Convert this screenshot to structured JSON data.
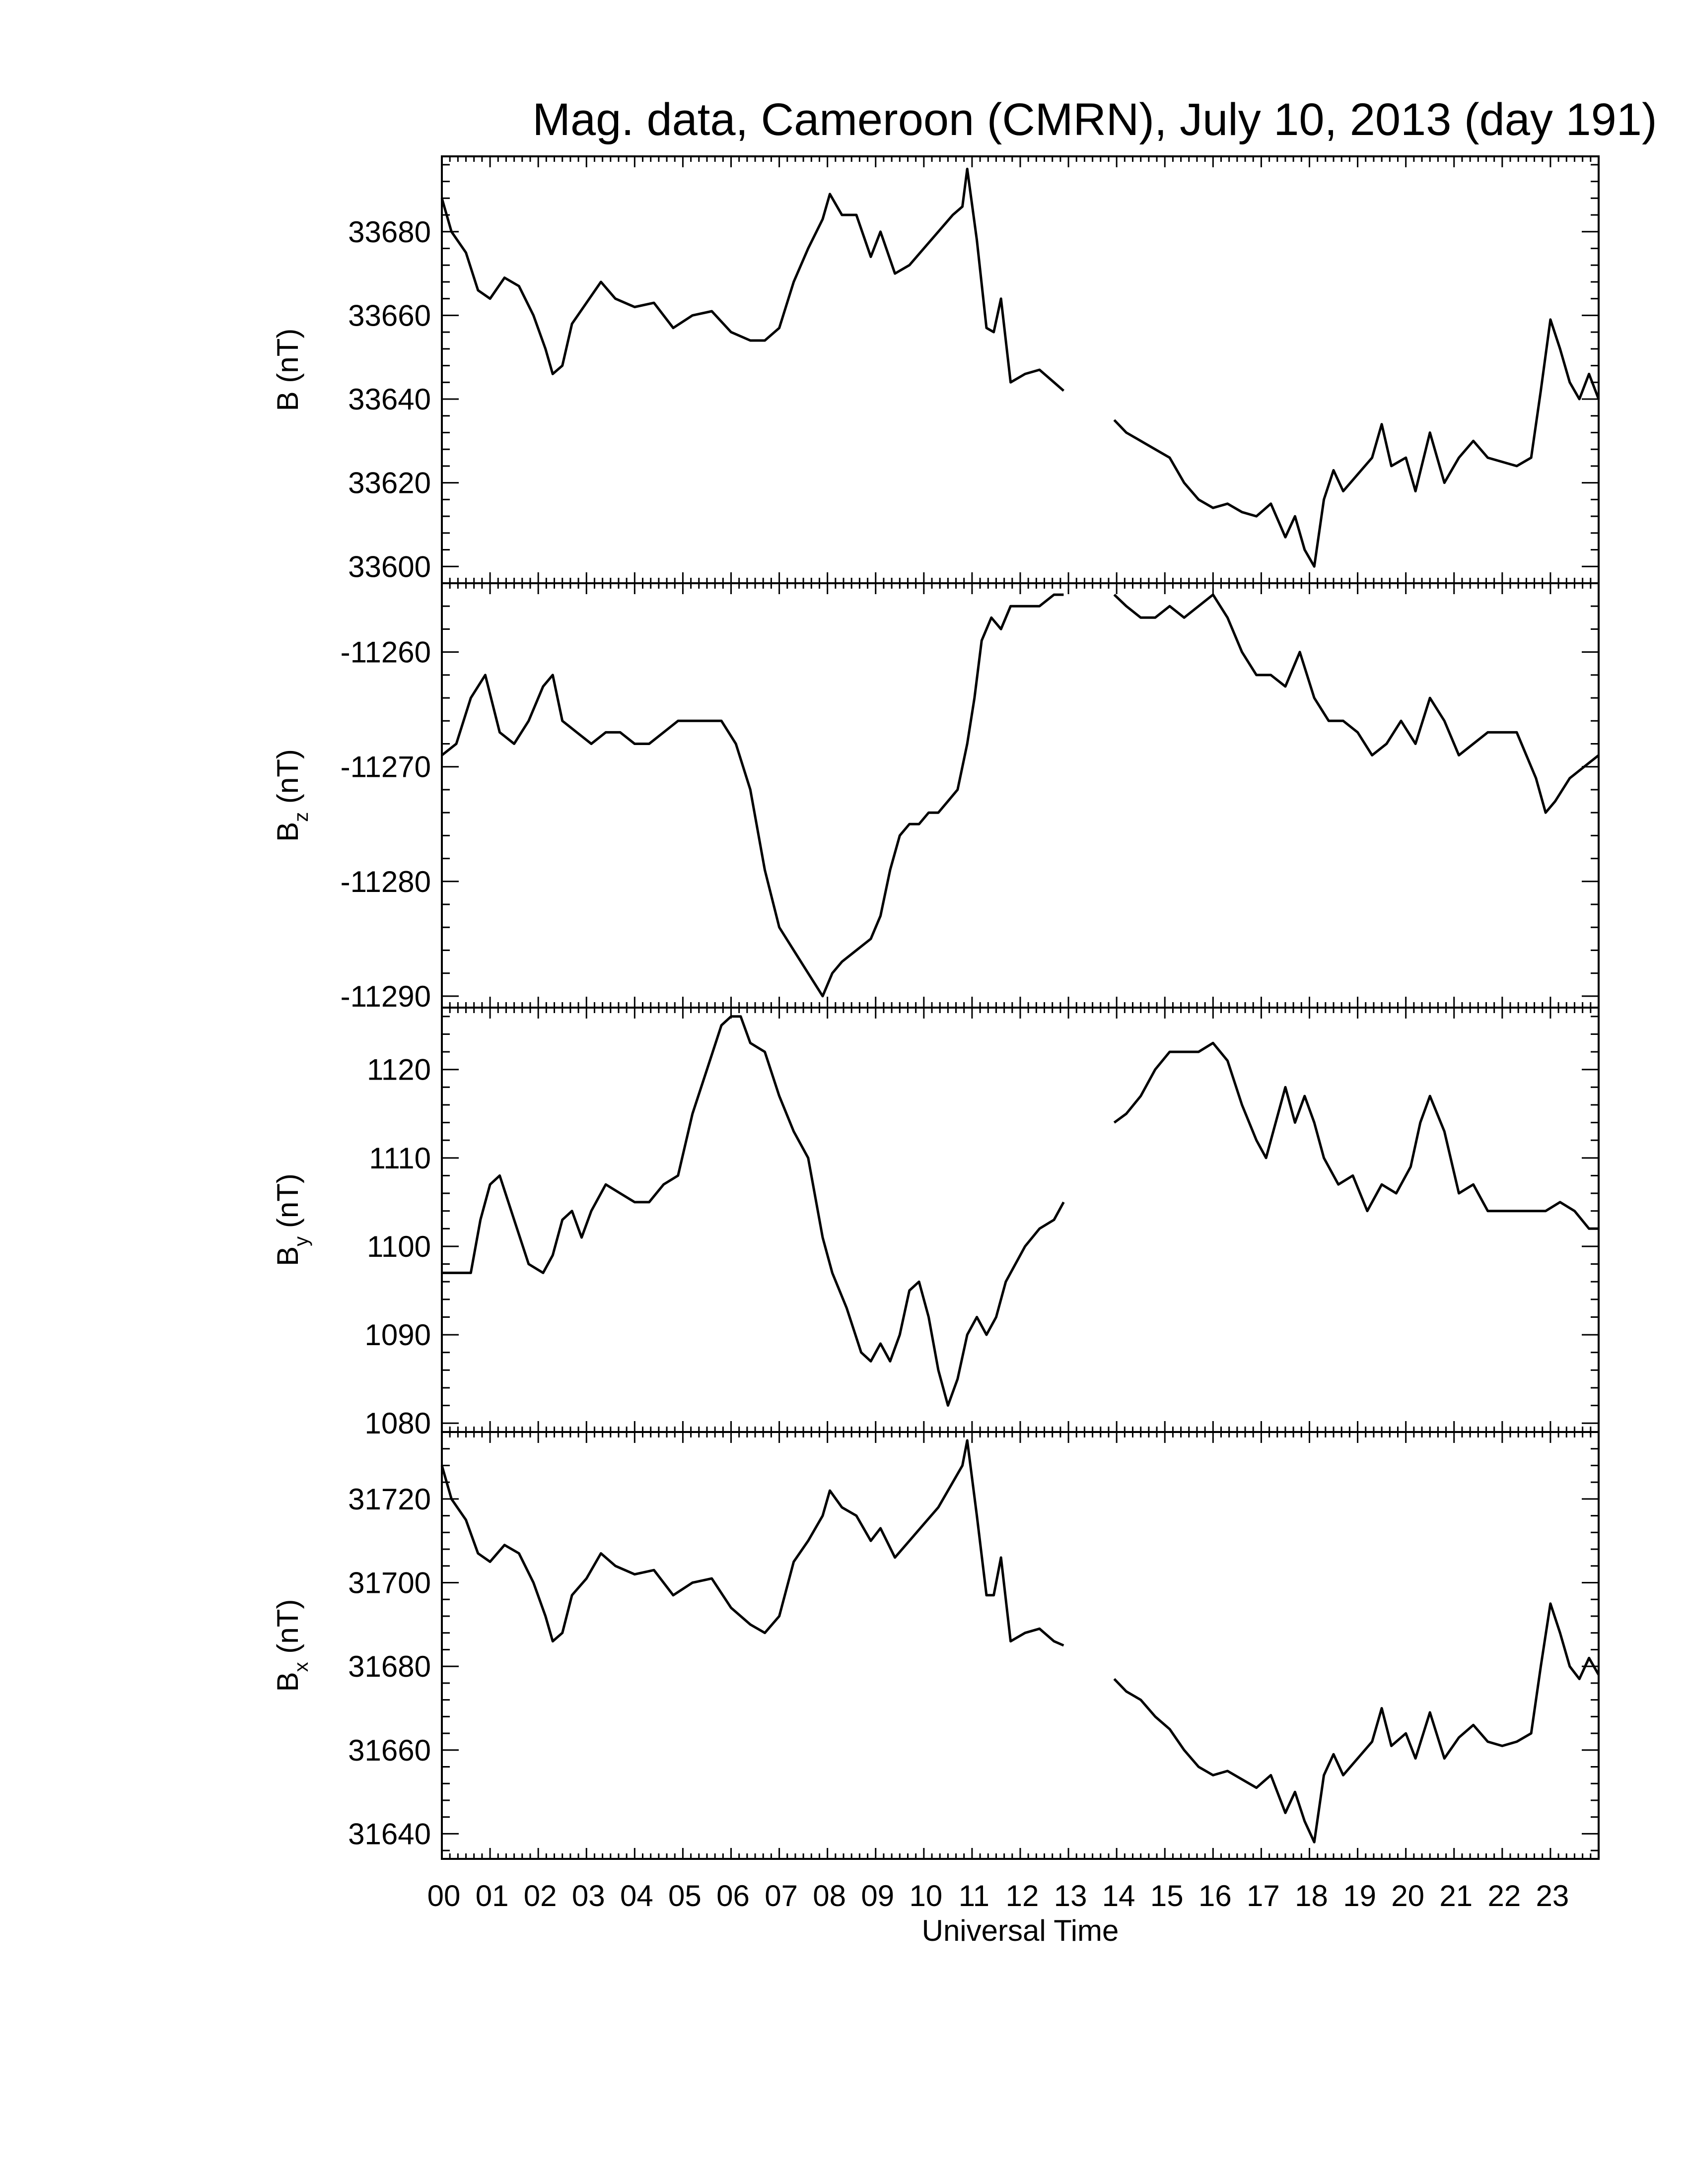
{
  "chart_data": {
    "type": "line",
    "title": "Mag. data, Cameroon (CMRN), July 10, 2013 (day 191)",
    "xlabel": "Universal Time",
    "x_unit": "hour UT",
    "xlim": [
      0,
      24
    ],
    "x_tick_labels": [
      "00",
      "01",
      "02",
      "03",
      "04",
      "05",
      "06",
      "07",
      "08",
      "09",
      "10",
      "11",
      "12",
      "13",
      "14",
      "15",
      "16",
      "17",
      "18",
      "19",
      "20",
      "21",
      "22",
      "23"
    ],
    "data_gap": [
      12.9,
      13.95
    ],
    "panels": [
      {
        "id": "B",
        "ylabel_main": "B",
        "ylabel_sub": "",
        "ylabel_unit": " (nT)",
        "ylim": [
          33596,
          33698
        ],
        "yticks": [
          33600,
          33620,
          33640,
          33660,
          33680
        ],
        "series": [
          {
            "x": [
              0,
              0.2,
              0.5,
              0.75,
              1.0,
              1.3,
              1.6,
              1.9,
              2.15,
              2.3,
              2.5,
              2.7,
              3.0,
              3.3,
              3.6,
              4.0,
              4.4,
              4.8,
              5.2,
              5.6,
              6.0,
              6.4,
              6.7,
              7.0,
              7.3,
              7.6,
              7.9,
              8.05,
              8.3,
              8.6,
              8.9,
              9.1,
              9.4,
              9.7,
              10.0,
              10.3,
              10.6,
              10.8,
              10.9,
              11.1,
              11.3,
              11.45,
              11.6,
              11.8,
              12.1,
              12.4,
              12.7,
              12.9
            ],
            "y": [
              33688,
              33680,
              33675,
              33666,
              33664,
              33669,
              33667,
              33660,
              33652,
              33646,
              33648,
              33658,
              33663,
              33668,
              33664,
              33662,
              33663,
              33657,
              33660,
              33661,
              33656,
              33654,
              33654,
              33657,
              33668,
              33676,
              33683,
              33689,
              33684,
              33684,
              33674,
              33680,
              33670,
              33672,
              33676,
              33680,
              33684,
              33686,
              33695,
              33678,
              33657,
              33656,
              33664,
              33644,
              33646,
              33647,
              33644,
              33642
            ]
          },
          {
            "x": [
              13.95,
              14.2,
              14.5,
              14.8,
              15.1,
              15.4,
              15.7,
              16.0,
              16.3,
              16.6,
              16.9,
              17.2,
              17.5,
              17.7,
              17.9,
              18.1,
              18.3,
              18.5,
              18.7,
              19.0,
              19.3,
              19.5,
              19.7,
              20.0,
              20.2,
              20.5,
              20.8,
              21.1,
              21.4,
              21.7,
              22.0,
              22.3,
              22.6,
              22.8,
              23.0,
              23.2,
              23.4,
              23.6,
              23.8,
              24.0
            ],
            "y": [
              33635,
              33632,
              33630,
              33628,
              33626,
              33620,
              33616,
              33614,
              33615,
              33613,
              33612,
              33615,
              33607,
              33612,
              33604,
              33600,
              33616,
              33623,
              33618,
              33622,
              33626,
              33634,
              33624,
              33626,
              33618,
              33632,
              33620,
              33626,
              33630,
              33626,
              33625,
              33624,
              33626,
              33642,
              33659,
              33652,
              33644,
              33640,
              33646,
              33640
            ]
          }
        ]
      },
      {
        "id": "Bz",
        "ylabel_main": "B",
        "ylabel_sub": "z",
        "ylabel_unit": " (nT)",
        "ylim": [
          -11291,
          -11254
        ],
        "yticks": [
          -11290,
          -11280,
          -11270,
          -11260
        ],
        "series": [
          {
            "x": [
              0,
              0.3,
              0.6,
              0.9,
              1.2,
              1.5,
              1.8,
              2.1,
              2.3,
              2.5,
              2.8,
              3.1,
              3.4,
              3.7,
              4.0,
              4.3,
              4.6,
              4.9,
              5.2,
              5.5,
              5.8,
              6.1,
              6.4,
              6.7,
              7.0,
              7.3,
              7.6,
              7.9,
              8.1,
              8.3,
              8.6,
              8.9,
              9.1,
              9.3,
              9.5,
              9.7,
              9.9,
              10.1,
              10.3,
              10.5,
              10.7,
              10.9,
              11.05,
              11.2,
              11.4,
              11.6,
              11.8,
              12.1,
              12.4,
              12.7,
              12.9
            ],
            "y": [
              -11269,
              -11268,
              -11264,
              -11262,
              -11267,
              -11268,
              -11266,
              -11263,
              -11262,
              -11266,
              -11267,
              -11268,
              -11267,
              -11267,
              -11268,
              -11268,
              -11267,
              -11266,
              -11266,
              -11266,
              -11266,
              -11268,
              -11272,
              -11279,
              -11284,
              -11286,
              -11288,
              -11290,
              -11288,
              -11287,
              -11286,
              -11285,
              -11283,
              -11279,
              -11276,
              -11275,
              -11275,
              -11274,
              -11274,
              -11273,
              -11272,
              -11268,
              -11264,
              -11259,
              -11257,
              -11258,
              -11256,
              -11256,
              -11256,
              -11255,
              -11255
            ]
          },
          {
            "x": [
              13.95,
              14.2,
              14.5,
              14.8,
              15.1,
              15.4,
              15.7,
              16.0,
              16.3,
              16.6,
              16.9,
              17.2,
              17.5,
              17.8,
              18.1,
              18.4,
              18.7,
              19.0,
              19.3,
              19.6,
              19.9,
              20.2,
              20.5,
              20.8,
              21.1,
              21.4,
              21.7,
              22.0,
              22.3,
              22.5,
              22.7,
              22.9,
              23.1,
              23.4,
              23.7,
              24.0
            ],
            "y": [
              -11255,
              -11256,
              -11257,
              -11257,
              -11256,
              -11257,
              -11256,
              -11255,
              -11257,
              -11260,
              -11262,
              -11262,
              -11263,
              -11260,
              -11264,
              -11266,
              -11266,
              -11267,
              -11269,
              -11268,
              -11266,
              -11268,
              -11264,
              -11266,
              -11269,
              -11268,
              -11267,
              -11267,
              -11267,
              -11269,
              -11271,
              -11274,
              -11273,
              -11271,
              -11270,
              -11269
            ]
          }
        ]
      },
      {
        "id": "By",
        "ylabel_main": "B",
        "ylabel_sub": "y",
        "ylabel_unit": " (nT)",
        "ylim": [
          1079,
          1127
        ],
        "yticks": [
          1080,
          1090,
          1100,
          1110,
          1120
        ],
        "series": [
          {
            "x": [
              0,
              0.3,
              0.6,
              0.8,
              1.0,
              1.2,
              1.5,
              1.8,
              2.1,
              2.3,
              2.5,
              2.7,
              2.9,
              3.1,
              3.4,
              3.7,
              4.0,
              4.3,
              4.6,
              4.9,
              5.2,
              5.5,
              5.8,
              6.0,
              6.2,
              6.4,
              6.7,
              7.0,
              7.3,
              7.6,
              7.9,
              8.1,
              8.4,
              8.7,
              8.9,
              9.1,
              9.3,
              9.5,
              9.7,
              9.9,
              10.1,
              10.3,
              10.5,
              10.7,
              10.9,
              11.1,
              11.3,
              11.5,
              11.7,
              11.9,
              12.1,
              12.4,
              12.7,
              12.9
            ],
            "y": [
              1097,
              1097,
              1097,
              1103,
              1107,
              1108,
              1103,
              1098,
              1097,
              1099,
              1103,
              1104,
              1101,
              1104,
              1107,
              1106,
              1105,
              1105,
              1107,
              1108,
              1115,
              1120,
              1125,
              1126,
              1126,
              1123,
              1122,
              1117,
              1113,
              1110,
              1101,
              1097,
              1093,
              1088,
              1087,
              1089,
              1087,
              1090,
              1095,
              1096,
              1092,
              1086,
              1082,
              1085,
              1090,
              1092,
              1090,
              1092,
              1096,
              1098,
              1100,
              1102,
              1103,
              1105
            ]
          },
          {
            "x": [
              13.95,
              14.2,
              14.5,
              14.8,
              15.1,
              15.4,
              15.7,
              16.0,
              16.3,
              16.6,
              16.9,
              17.1,
              17.3,
              17.5,
              17.7,
              17.9,
              18.1,
              18.3,
              18.6,
              18.9,
              19.2,
              19.5,
              19.8,
              20.1,
              20.3,
              20.5,
              20.8,
              21.1,
              21.4,
              21.7,
              22.0,
              22.3,
              22.6,
              22.9,
              23.2,
              23.5,
              23.8,
              24.0
            ],
            "y": [
              1114,
              1115,
              1117,
              1120,
              1122,
              1122,
              1122,
              1123,
              1121,
              1116,
              1112,
              1110,
              1114,
              1118,
              1114,
              1117,
              1114,
              1110,
              1107,
              1108,
              1104,
              1107,
              1106,
              1109,
              1114,
              1117,
              1113,
              1106,
              1107,
              1104,
              1104,
              1104,
              1104,
              1104,
              1105,
              1104,
              1102,
              1102
            ]
          }
        ]
      },
      {
        "id": "Bx",
        "ylabel_main": "B",
        "ylabel_sub": "x",
        "ylabel_unit": " (nT)",
        "ylim": [
          31634,
          31736
        ],
        "yticks": [
          31640,
          31660,
          31680,
          31700,
          31720
        ],
        "series": [
          {
            "x": [
              0,
              0.2,
              0.5,
              0.75,
              1.0,
              1.3,
              1.6,
              1.9,
              2.15,
              2.3,
              2.5,
              2.7,
              3.0,
              3.3,
              3.6,
              4.0,
              4.4,
              4.8,
              5.2,
              5.6,
              6.0,
              6.4,
              6.7,
              7.0,
              7.3,
              7.6,
              7.9,
              8.05,
              8.3,
              8.6,
              8.9,
              9.1,
              9.4,
              9.7,
              10.0,
              10.3,
              10.6,
              10.8,
              10.9,
              11.1,
              11.3,
              11.45,
              11.6,
              11.8,
              12.1,
              12.4,
              12.7,
              12.9
            ],
            "y": [
              31728,
              31720,
              31715,
              31707,
              31705,
              31709,
              31707,
              31700,
              31692,
              31686,
              31688,
              31697,
              31701,
              31707,
              31704,
              31702,
              31703,
              31697,
              31700,
              31701,
              31694,
              31690,
              31688,
              31692,
              31705,
              31710,
              31716,
              31722,
              31718,
              31716,
              31710,
              31713,
              31706,
              31710,
              31714,
              31718,
              31724,
              31728,
              31734,
              31716,
              31697,
              31697,
              31706,
              31686,
              31688,
              31689,
              31686,
              31685
            ]
          },
          {
            "x": [
              13.95,
              14.2,
              14.5,
              14.8,
              15.1,
              15.4,
              15.7,
              16.0,
              16.3,
              16.6,
              16.9,
              17.2,
              17.5,
              17.7,
              17.9,
              18.1,
              18.3,
              18.5,
              18.7,
              19.0,
              19.3,
              19.5,
              19.7,
              20.0,
              20.2,
              20.5,
              20.8,
              21.1,
              21.4,
              21.7,
              22.0,
              22.3,
              22.6,
              22.8,
              23.0,
              23.2,
              23.4,
              23.6,
              23.8,
              24.0
            ],
            "y": [
              31677,
              31674,
              31672,
              31668,
              31665,
              31660,
              31656,
              31654,
              31655,
              31653,
              31651,
              31654,
              31645,
              31650,
              31643,
              31638,
              31654,
              31659,
              31654,
              31658,
              31662,
              31670,
              31661,
              31664,
              31658,
              31669,
              31658,
              31663,
              31666,
              31662,
              31661,
              31662,
              31664,
              31680,
              31695,
              31688,
              31680,
              31677,
              31682,
              31678
            ]
          }
        ]
      }
    ]
  }
}
